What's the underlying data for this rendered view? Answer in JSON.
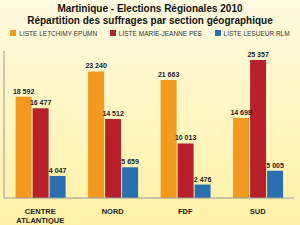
{
  "chart_data": {
    "type": "bar",
    "title": "Martinique - Elections Régionales 2010",
    "subtitle": "Répartition des suffrages par section géographique",
    "categories": [
      "CENTRE ATLANTIQUE",
      "NORD",
      "FDF",
      "SUD"
    ],
    "series": [
      {
        "name": "LISTE LETCHIMY EPUMN",
        "color": "#f39a1e",
        "values": [
          18592,
          23240,
          21663,
          14698
        ],
        "value_labels": [
          "18 592",
          "23 240",
          "21 663",
          "14 698"
        ]
      },
      {
        "name": "LISTE MARIE-JEANNE PES",
        "color": "#b8202a",
        "values": [
          16477,
          14512,
          10013,
          25357
        ],
        "value_labels": [
          "16 477",
          "14 512",
          "10 013",
          "25 357"
        ]
      },
      {
        "name": "LISTE LESUEUR RLM",
        "color": "#2a6fb0",
        "values": [
          4047,
          5659,
          2476,
          5005
        ],
        "value_labels": [
          "4 047",
          "5 659",
          "2 476",
          "5 005"
        ]
      }
    ],
    "ylim": [
      0,
      27000
    ],
    "grid": false,
    "legend": "top",
    "data_labels": true,
    "tick_labels": "x"
  }
}
